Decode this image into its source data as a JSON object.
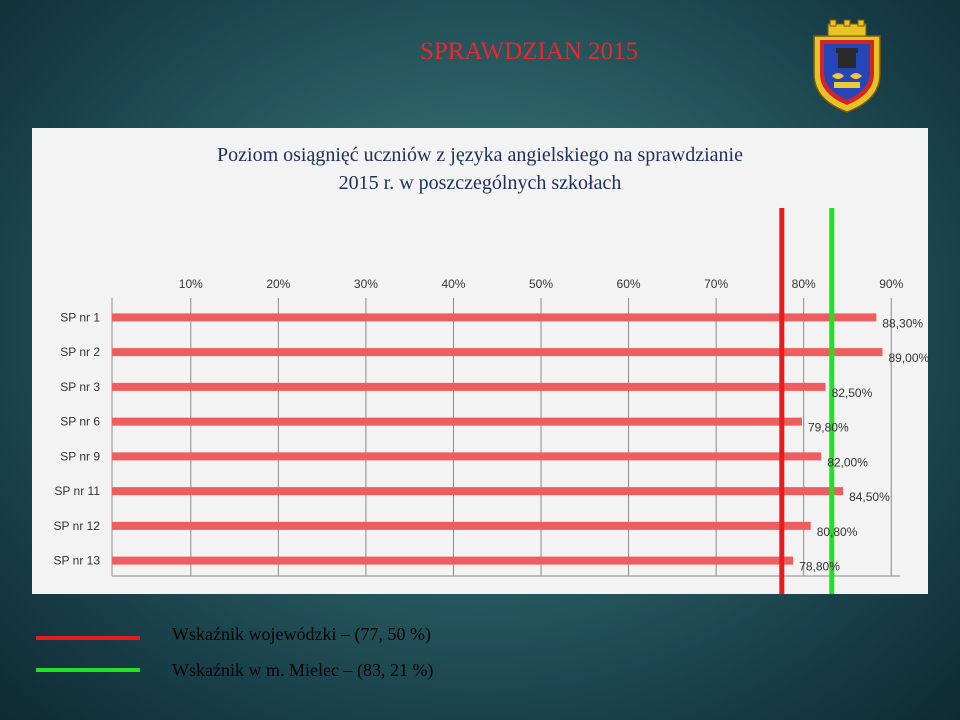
{
  "slide": {
    "title": "SPRAWDZIAN 2015",
    "crest": "city-coat-of-arms"
  },
  "chart_data": {
    "type": "bar",
    "orientation": "horizontal",
    "title_lines": [
      "Poziom osiągnięć uczniów z języka angielskiego na sprawdzianie",
      "2015 r. w poszczególnych szkołach"
    ],
    "categories": [
      "SP nr 1",
      "SP nr 2",
      "SP nr 3",
      "SP nr 6",
      "SP nr 9",
      "SP nr 11",
      "SP nr 12",
      "SP nr 13"
    ],
    "values": [
      88.3,
      89.0,
      82.5,
      79.8,
      82.0,
      84.5,
      80.8,
      78.8
    ],
    "value_labels": [
      "88,30%",
      "89,00%",
      "82,50%",
      "79,80%",
      "82,00%",
      "84,50%",
      "80,80%",
      "78,80%"
    ],
    "xlim": [
      1,
      91
    ],
    "ticks": [
      10,
      20,
      30,
      40,
      50,
      60,
      70,
      80,
      90
    ],
    "tick_labels": [
      "10%",
      "20%",
      "30%",
      "40%",
      "50%",
      "60%",
      "70%",
      "80%",
      "90%"
    ],
    "axis_position": "top",
    "grid": true,
    "bar_color": "#ee5e5e",
    "reference_lines": [
      {
        "value": 77.5,
        "color": "#e81c1c",
        "label": "Wskaźnik wojewódzki – (77, 50 %)"
      },
      {
        "value": 83.21,
        "color": "#22e022",
        "label": "Wskaźnik w m. Mielec – (83, 21 %)"
      }
    ],
    "legend_position": "bottom-left"
  }
}
